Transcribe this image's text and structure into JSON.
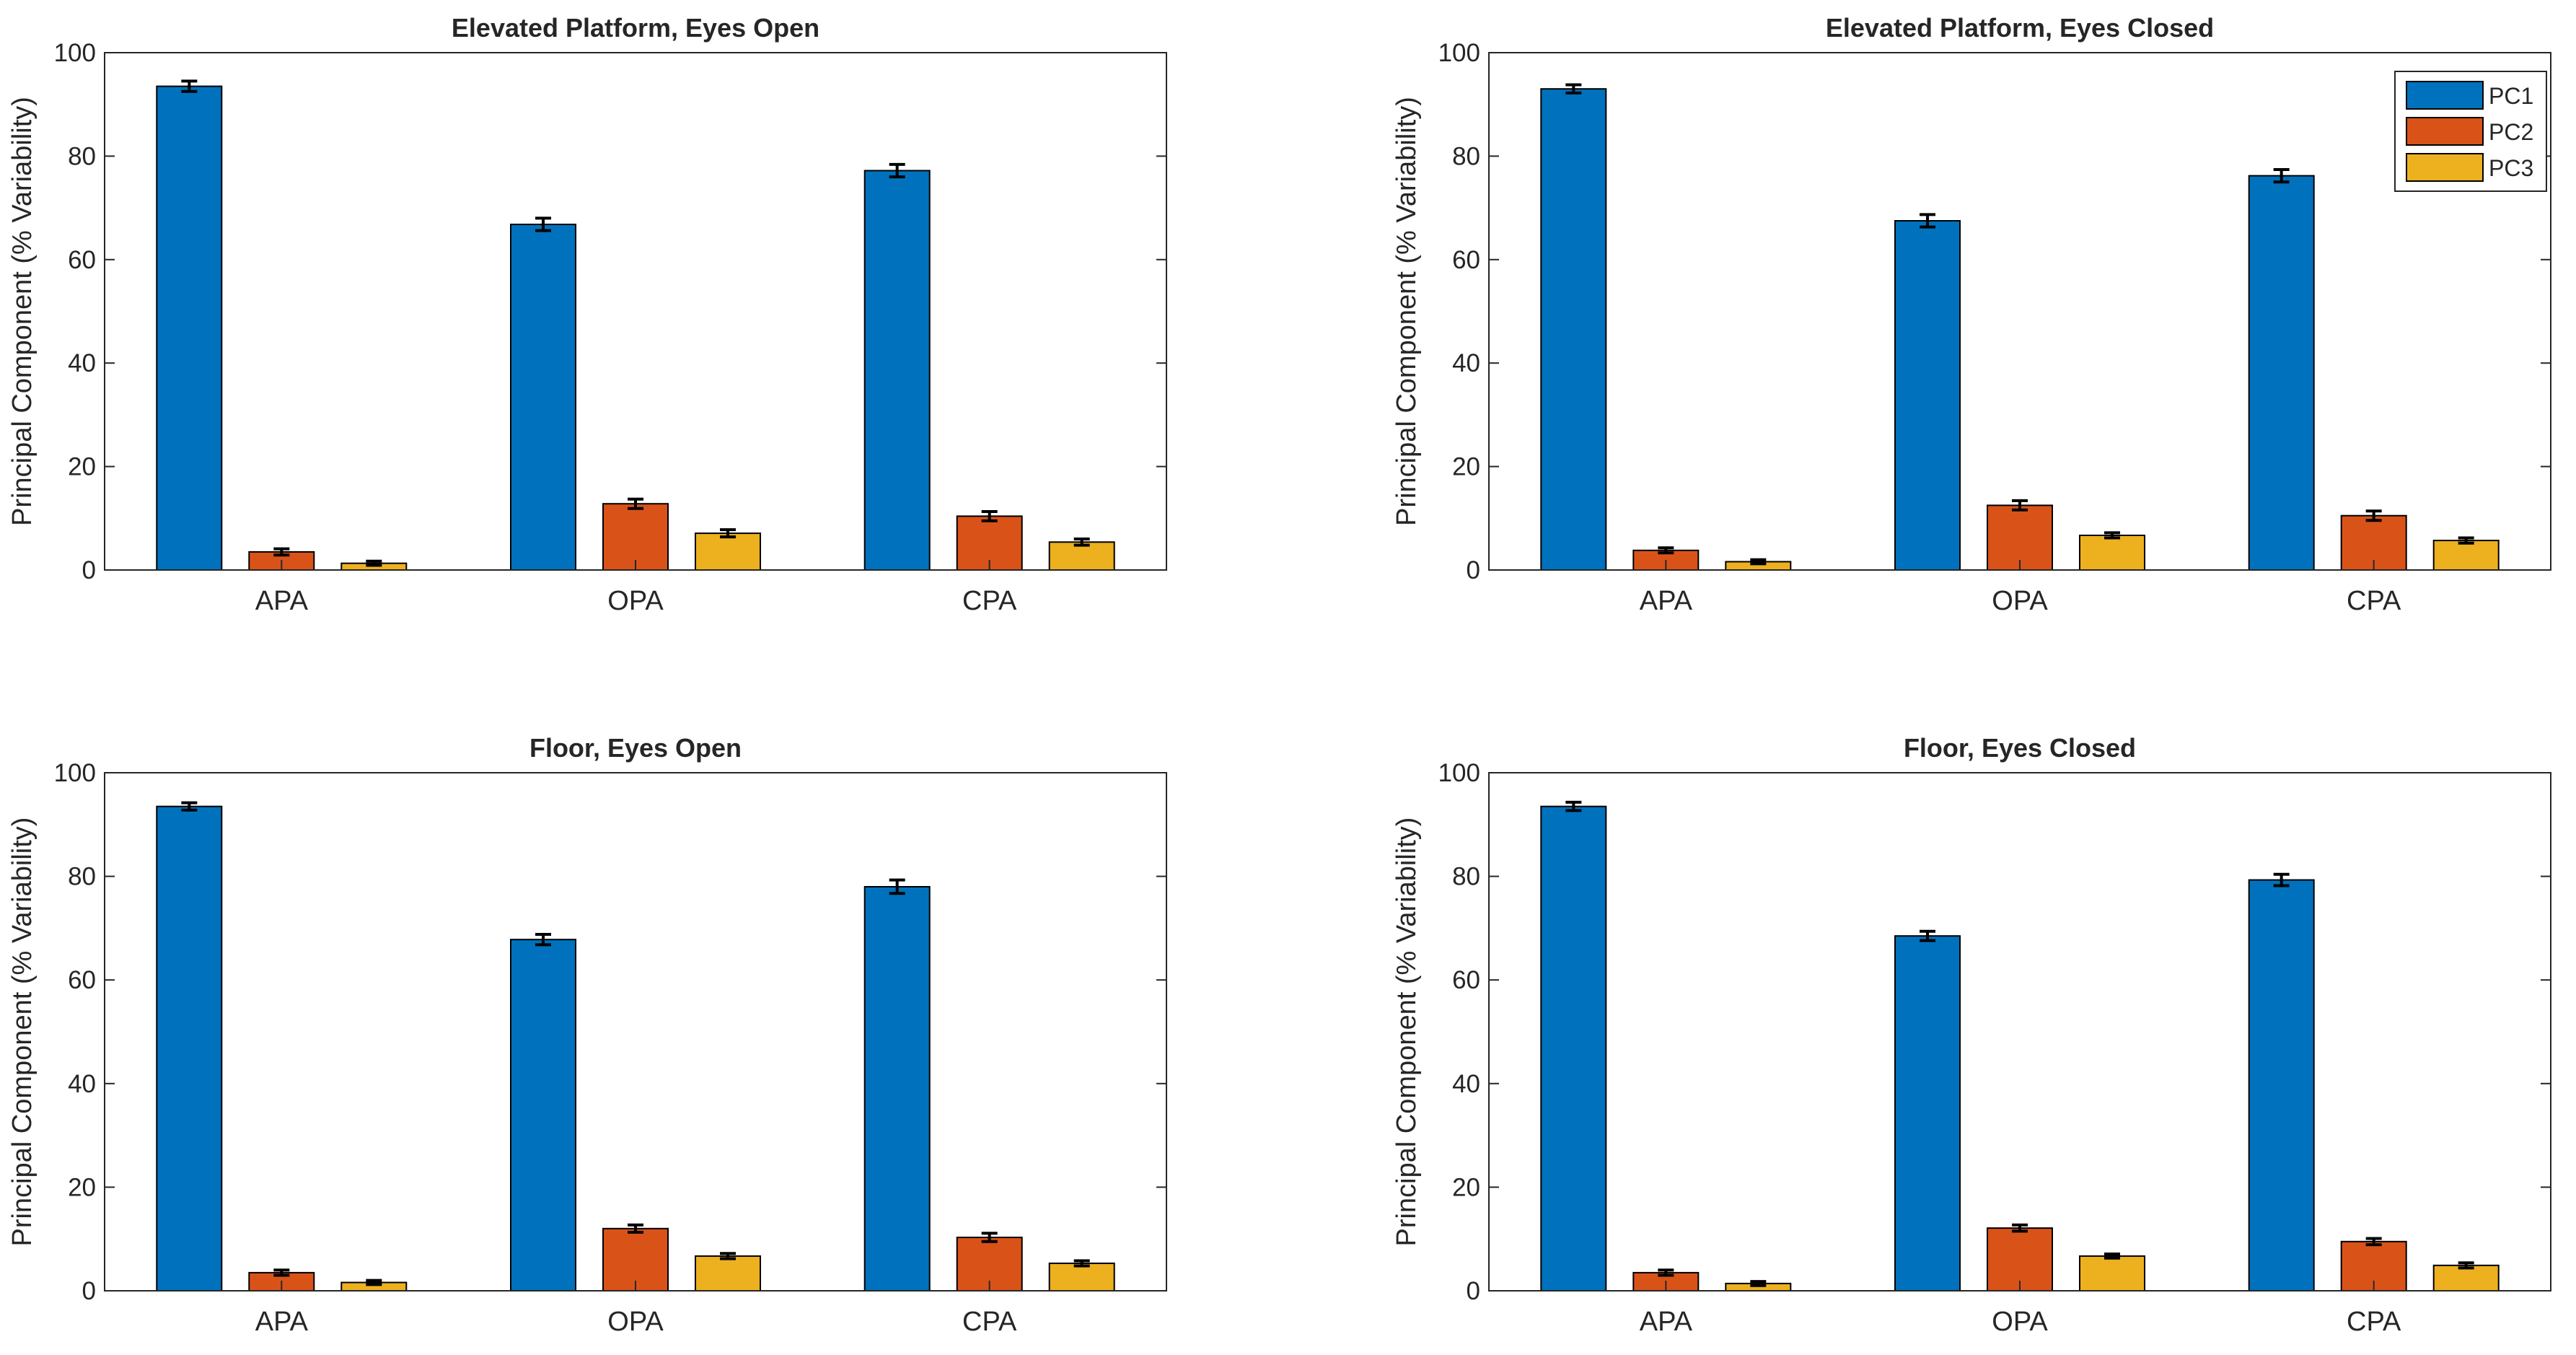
{
  "figure_title": "",
  "colors": {
    "PC1": "#0072BD",
    "PC2": "#D95319",
    "PC3": "#EDB120",
    "axis": "#262626",
    "errorbar": "#000000"
  },
  "legend": {
    "entries": [
      "PC1",
      "PC2",
      "PC3"
    ],
    "placement": "top-right of panel 2"
  },
  "chart_data": [
    {
      "type": "bar",
      "title": "Elevated Platform, Eyes Open",
      "ylabel": "Principal Component (% Variability)",
      "xlabel": "",
      "ylim": [
        0,
        100
      ],
      "yticks": [
        0,
        20,
        40,
        60,
        80,
        100
      ],
      "categories": [
        "APA",
        "OPA",
        "CPA"
      ],
      "series": [
        {
          "name": "PC1",
          "values": [
            93.5,
            66.8,
            77.2
          ],
          "errors": [
            1.0,
            1.2,
            1.2
          ]
        },
        {
          "name": "PC2",
          "values": [
            3.5,
            12.8,
            10.4
          ],
          "errors": [
            0.6,
            0.9,
            0.9
          ]
        },
        {
          "name": "PC3",
          "values": [
            1.3,
            7.1,
            5.4
          ],
          "errors": [
            0.4,
            0.7,
            0.6
          ]
        }
      ],
      "legend": false
    },
    {
      "type": "bar",
      "title": "Elevated Platform, Eyes Closed",
      "ylabel": "Principal Component (% Variability)",
      "xlabel": "",
      "ylim": [
        0,
        100
      ],
      "yticks": [
        0,
        20,
        40,
        60,
        80,
        100
      ],
      "categories": [
        "APA",
        "OPA",
        "CPA"
      ],
      "series": [
        {
          "name": "PC1",
          "values": [
            93.0,
            67.5,
            76.2
          ],
          "errors": [
            0.8,
            1.2,
            1.2
          ]
        },
        {
          "name": "PC2",
          "values": [
            3.8,
            12.5,
            10.5
          ],
          "errors": [
            0.5,
            0.9,
            0.9
          ]
        },
        {
          "name": "PC3",
          "values": [
            1.6,
            6.7,
            5.7
          ],
          "errors": [
            0.4,
            0.5,
            0.5
          ]
        }
      ],
      "legend": true
    },
    {
      "type": "bar",
      "title": "Floor, Eyes Open",
      "ylabel": "Principal Component (% Variability)",
      "xlabel": "",
      "ylim": [
        0,
        100
      ],
      "yticks": [
        0,
        20,
        40,
        60,
        80,
        100
      ],
      "categories": [
        "APA",
        "OPA",
        "CPA"
      ],
      "series": [
        {
          "name": "PC1",
          "values": [
            93.5,
            67.8,
            78.0
          ],
          "errors": [
            0.7,
            1.0,
            1.3
          ]
        },
        {
          "name": "PC2",
          "values": [
            3.5,
            12.0,
            10.3
          ],
          "errors": [
            0.5,
            0.7,
            0.8
          ]
        },
        {
          "name": "PC3",
          "values": [
            1.6,
            6.7,
            5.3
          ],
          "errors": [
            0.4,
            0.5,
            0.5
          ]
        }
      ],
      "legend": false
    },
    {
      "type": "bar",
      "title": "Floor, Eyes Closed",
      "ylabel": "Principal Component (% Variability)",
      "xlabel": "",
      "ylim": [
        0,
        100
      ],
      "yticks": [
        0,
        20,
        40,
        60,
        80,
        100
      ],
      "categories": [
        "APA",
        "OPA",
        "CPA"
      ],
      "series": [
        {
          "name": "PC1",
          "values": [
            93.5,
            68.5,
            79.3
          ],
          "errors": [
            0.8,
            0.9,
            1.1
          ]
        },
        {
          "name": "PC2",
          "values": [
            3.5,
            12.1,
            9.5
          ],
          "errors": [
            0.5,
            0.6,
            0.6
          ]
        },
        {
          "name": "PC3",
          "values": [
            1.4,
            6.7,
            4.9
          ],
          "errors": [
            0.4,
            0.4,
            0.5
          ]
        }
      ],
      "legend": false
    }
  ]
}
